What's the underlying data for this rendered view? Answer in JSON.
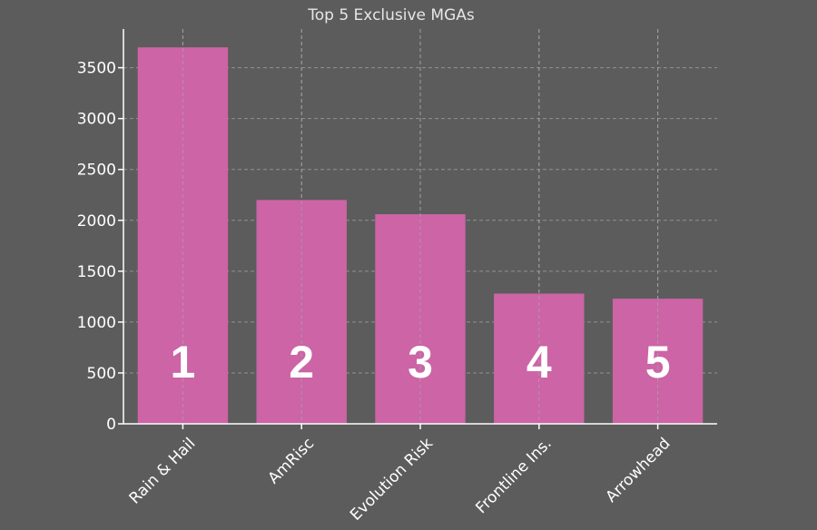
{
  "chart_data": {
    "type": "bar",
    "title": "Top 5 Exclusive MGAs",
    "xlabel": "",
    "ylabel": "",
    "categories": [
      "Rain & Hail",
      "AmRisc",
      "Evolution Risk",
      "Frontline Ins.",
      "Arrowhead"
    ],
    "values": [
      3700,
      2200,
      2060,
      1280,
      1230
    ],
    "bar_labels": [
      "1",
      "2",
      "3",
      "4",
      "5"
    ],
    "ylim": [
      0,
      3880
    ],
    "yticks": [
      0,
      500,
      1000,
      1500,
      2000,
      2500,
      3000,
      3500
    ],
    "grid": true,
    "bar_color": "#d064a8",
    "background_color": "#5c5c5c"
  }
}
